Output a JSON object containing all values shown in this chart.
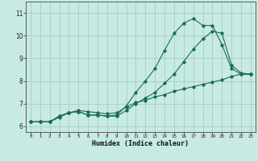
{
  "xlabel": "Humidex (Indice chaleur)",
  "background_color": "#c8eae4",
  "grid_color": "#a8ccc8",
  "line_color": "#1a6b5a",
  "xlim": [
    -0.5,
    23.5
  ],
  "ylim": [
    5.75,
    11.5
  ],
  "xticks": [
    0,
    1,
    2,
    3,
    4,
    5,
    6,
    7,
    8,
    9,
    10,
    11,
    12,
    13,
    14,
    15,
    16,
    17,
    18,
    19,
    20,
    21,
    22,
    23
  ],
  "yticks": [
    6,
    7,
    8,
    9,
    10,
    11
  ],
  "line1_x": [
    0,
    1,
    2,
    3,
    4,
    5,
    6,
    7,
    8,
    9,
    10,
    11,
    12,
    13,
    14,
    15,
    16,
    17,
    18,
    19,
    20,
    21,
    22,
    23
  ],
  "line1_y": [
    6.2,
    6.2,
    6.2,
    6.4,
    6.6,
    6.7,
    6.65,
    6.6,
    6.55,
    6.6,
    6.85,
    7.05,
    7.15,
    7.3,
    7.4,
    7.55,
    7.65,
    7.75,
    7.85,
    7.95,
    8.05,
    8.2,
    8.3,
    8.3
  ],
  "line2_x": [
    0,
    1,
    2,
    3,
    4,
    5,
    6,
    7,
    8,
    9,
    10,
    11,
    12,
    13,
    14,
    15,
    16,
    17,
    18,
    19,
    20,
    21,
    22,
    23
  ],
  "line2_y": [
    6.2,
    6.2,
    6.2,
    6.45,
    6.6,
    6.65,
    6.5,
    6.5,
    6.45,
    6.45,
    6.7,
    7.0,
    7.25,
    7.5,
    7.9,
    8.3,
    8.85,
    9.4,
    9.85,
    10.2,
    10.1,
    8.7,
    8.35,
    8.3
  ],
  "line3_x": [
    0,
    1,
    2,
    3,
    4,
    5,
    6,
    7,
    8,
    9,
    10,
    11,
    12,
    13,
    14,
    15,
    16,
    17,
    18,
    19,
    20,
    21,
    22,
    23
  ],
  "line3_y": [
    6.2,
    6.2,
    6.2,
    6.45,
    6.6,
    6.65,
    6.5,
    6.5,
    6.45,
    6.5,
    6.9,
    7.5,
    8.0,
    8.55,
    9.35,
    10.1,
    10.55,
    10.75,
    10.45,
    10.45,
    9.6,
    8.55,
    8.3,
    8.3
  ]
}
